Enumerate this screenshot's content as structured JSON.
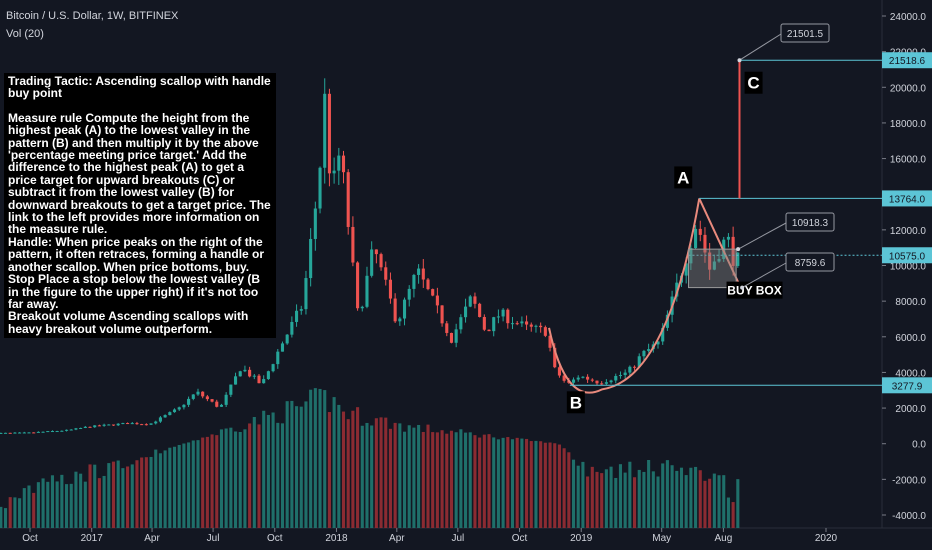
{
  "header": {
    "symbol": "Bitcoin / U.S. Dollar, 1W, BITFINEX",
    "indicator": "Vol (20)"
  },
  "note": {
    "title": "Trading Tactic: Ascending scallop with handle buy point",
    "measure_rule": "Measure rule Compute the height from the highest peak (A) to the lowest valley in the pattern (B) and then multiply it by the above 'percentage meeting price target.' Add the difference to the highest peak (A) to get a price target for upward breakouts (C) or subtract it from the lowest valley (B) for downward breakouts to get a target price. The link to the left provides more information on the measure rule.",
    "handle": "Handle: When price peaks on the right of the pattern, it often retraces, forming a handle or another scallop. When price bottoms, buy.",
    "stop": "Stop Place a stop below the lowest valley (B in the figure to the upper right) if it's not too far away.",
    "volume": "Breakout volume Ascending scallops with heavy breakout volume outperform."
  },
  "chart_data": {
    "type": "candlestick",
    "symbol": "BTCUSD",
    "exchange": "BITFINEX",
    "interval": "1W",
    "y_axis": {
      "ticks": [
        -4000,
        -2000,
        0,
        2000,
        4000,
        6000,
        8000,
        10000,
        12000,
        14000,
        16000,
        18000,
        20000,
        22000,
        24000
      ],
      "tick_labels": [
        "-4000.0",
        "-2000.0",
        "0.0",
        "2000.0",
        "4000.0",
        "6000.0",
        "8000.0",
        "10000.0",
        "12000.0",
        "14000.0",
        "16000.0",
        "18000.0",
        "20000.0",
        "22000.0",
        "24000.0"
      ],
      "range": [
        -4500,
        24800
      ]
    },
    "x_axis": {
      "tick_labels": [
        "Oct",
        "2017",
        "Apr",
        "Jul",
        "Oct",
        "2018",
        "Apr",
        "Jul",
        "Oct",
        "2019",
        "May",
        "Aug",
        "2020"
      ],
      "tick_dates": [
        "2016-10-01",
        "2017-01-01",
        "2017-04-01",
        "2017-07-01",
        "2017-10-01",
        "2018-01-01",
        "2018-04-01",
        "2018-07-01",
        "2018-10-01",
        "2019-01-01",
        "2019-05-01",
        "2019-08-01",
        "2020-01-01"
      ]
    },
    "price_path": [
      [
        "2016-08-01",
        580
      ],
      [
        "2016-10-01",
        610
      ],
      [
        "2016-12-01",
        760
      ],
      [
        "2017-01-01",
        960
      ],
      [
        "2017-03-01",
        1150
      ],
      [
        "2017-04-01",
        1100
      ],
      [
        "2017-05-15",
        2000
      ],
      [
        "2017-06-10",
        2900
      ],
      [
        "2017-07-15",
        2000
      ],
      [
        "2017-08-15",
        4300
      ],
      [
        "2017-09-15",
        3300
      ],
      [
        "2017-10-15",
        5600
      ],
      [
        "2017-11-15",
        7800
      ],
      [
        "2017-12-10",
        15000
      ],
      [
        "2017-12-17",
        19800
      ],
      [
        "2017-12-28",
        14000
      ],
      [
        "2018-01-10",
        16500
      ],
      [
        "2018-02-06",
        7000
      ],
      [
        "2018-03-01",
        11000
      ],
      [
        "2018-04-05",
        6800
      ],
      [
        "2018-05-05",
        9700
      ],
      [
        "2018-06-25",
        5900
      ],
      [
        "2018-07-25",
        8200
      ],
      [
        "2018-08-15",
        6300
      ],
      [
        "2018-09-05",
        7300
      ],
      [
        "2018-10-15",
        6500
      ],
      [
        "2018-11-14",
        6300
      ],
      [
        "2018-11-25",
        4200
      ],
      [
        "2018-12-15",
        3300
      ],
      [
        "2019-01-01",
        3800
      ],
      [
        "2019-02-01",
        3450
      ],
      [
        "2019-03-15",
        4000
      ],
      [
        "2019-04-05",
        5000
      ],
      [
        "2019-05-01",
        5700
      ],
      [
        "2019-05-25",
        8600
      ],
      [
        "2019-06-26",
        12500
      ],
      [
        "2019-07-15",
        9800
      ],
      [
        "2019-07-30",
        10900
      ],
      [
        "2019-08-10",
        11600
      ],
      [
        "2019-08-20",
        10300
      ]
    ],
    "volume_bars_approx": [
      [
        "2017-12-15",
        3000
      ],
      [
        "2018-01-15",
        2000
      ],
      [
        "2018-04-15",
        1100
      ],
      [
        "2018-11-25",
        0
      ],
      [
        "2019-01-10",
        -2100
      ],
      [
        "2019-04-10",
        -1600
      ],
      [
        "2019-06-26",
        -1700
      ],
      [
        "2019-08-20",
        -3500
      ]
    ],
    "price_labels": [
      {
        "value": 21518.6,
        "label": "21518.6",
        "color": "#5cc5d6",
        "role": "target line C"
      },
      {
        "value": 13764.0,
        "label": "13764.0",
        "color": "#5cc5d6",
        "role": "peak line A"
      },
      {
        "value": 10575.0,
        "label": "10575.0",
        "color": "#5cc5d6",
        "role": "last price"
      },
      {
        "value": 3277.9,
        "label": "3277.9",
        "color": "#5cc5d6",
        "role": "valley line B"
      }
    ],
    "callouts": [
      {
        "label": "21501.5",
        "value": 21501.5
      },
      {
        "label": "10918.3",
        "value": 10918.3
      },
      {
        "label": "8759.6",
        "value": 8759.6
      }
    ],
    "annotations": [
      {
        "label": "A",
        "x": "2019-06-26",
        "y": 13764
      },
      {
        "label": "B",
        "x": "2018-12-15",
        "y": 3278
      },
      {
        "label": "C",
        "x": "2019-08-25",
        "y": 21518.6
      },
      {
        "label": "BUY BOX",
        "x_from": "2019-06-10",
        "x_to": "2019-08-20",
        "y_from": 8759.6,
        "y_to": 10918.3
      }
    ],
    "colors": {
      "background": "#131722",
      "up": "#26a69a",
      "down": "#ef5350",
      "vol_up": "#1f6f6a",
      "vol_down": "#8b2b32",
      "arc": "#e98a7d",
      "guide": "#5cc5d6",
      "buy_box": "#808080"
    }
  }
}
